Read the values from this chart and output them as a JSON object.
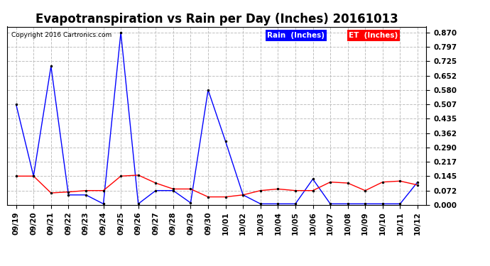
{
  "title": "Evapotranspiration vs Rain per Day (Inches) 20161013",
  "copyright": "Copyright 2016 Cartronics.com",
  "legend_rain": "Rain  (Inches)",
  "legend_et": "ET  (Inches)",
  "x_labels": [
    "09/19",
    "09/20",
    "09/21",
    "09/22",
    "09/23",
    "09/24",
    "09/25",
    "09/26",
    "09/27",
    "09/28",
    "09/29",
    "09/30",
    "10/01",
    "10/02",
    "10/03",
    "10/04",
    "10/05",
    "10/06",
    "10/07",
    "10/08",
    "10/09",
    "10/10",
    "10/11",
    "10/12"
  ],
  "rain": [
    0.507,
    0.145,
    0.7,
    0.05,
    0.05,
    0.005,
    0.87,
    0.005,
    0.072,
    0.072,
    0.01,
    0.58,
    0.32,
    0.05,
    0.005,
    0.005,
    0.005,
    0.13,
    0.005,
    0.005,
    0.005,
    0.005,
    0.005,
    0.115
  ],
  "et": [
    0.145,
    0.145,
    0.06,
    0.065,
    0.072,
    0.072,
    0.145,
    0.15,
    0.11,
    0.08,
    0.08,
    0.04,
    0.04,
    0.05,
    0.072,
    0.08,
    0.072,
    0.072,
    0.115,
    0.11,
    0.072,
    0.115,
    0.12,
    0.1
  ],
  "y_ticks": [
    0.0,
    0.072,
    0.145,
    0.217,
    0.29,
    0.362,
    0.435,
    0.507,
    0.58,
    0.652,
    0.725,
    0.797,
    0.87
  ],
  "y_max": 0.9,
  "rain_color": "#0000ff",
  "et_color": "#ff0000",
  "bg_color": "#ffffff",
  "grid_color": "#c0c0c0",
  "title_fontsize": 12,
  "tick_fontsize": 7.5,
  "legend_bg_rain": "#0000ff",
  "legend_bg_et": "#ff0000",
  "legend_text_color": "#ffffff"
}
